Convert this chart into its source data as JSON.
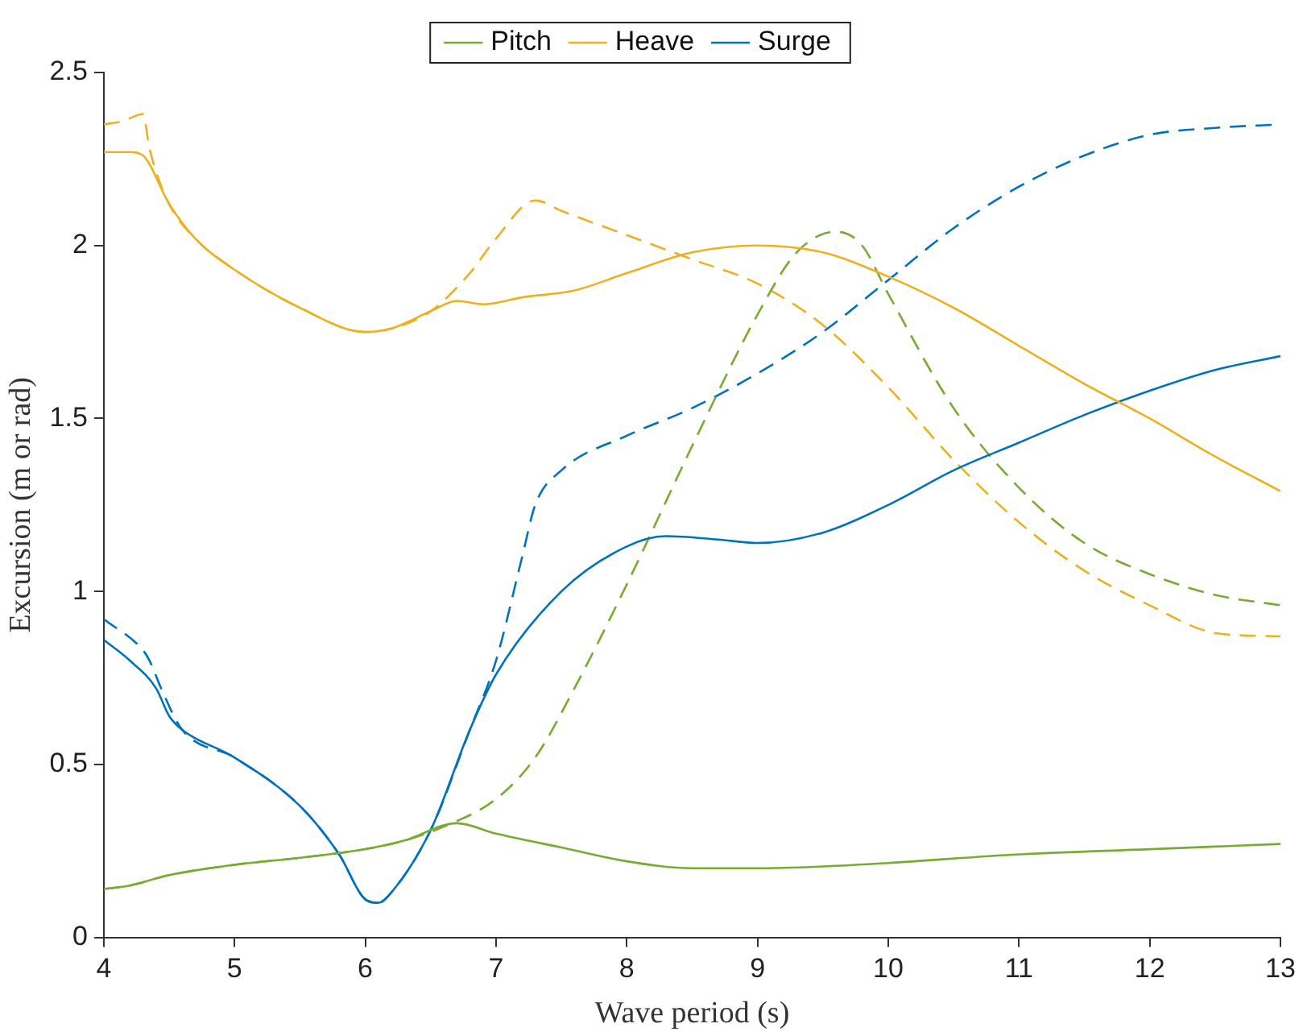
{
  "chart_data": {
    "type": "line",
    "xlabel": "Wave period (s)",
    "ylabel": "Excursion (m or rad)",
    "xlim": [
      4,
      13
    ],
    "xticks": [
      4,
      5,
      6,
      7,
      8,
      9,
      10,
      11,
      12,
      13
    ],
    "ylim": [
      0,
      2.5
    ],
    "yticks": [
      0,
      0.5,
      1,
      1.5,
      2,
      2.5
    ],
    "grid": false,
    "legend": "top",
    "marker": "none",
    "series": [
      {
        "name": "Pitch",
        "color": "#77ac30",
        "line_style": "solid",
        "x": [
          4,
          4.2,
          4.5,
          5,
          5.5,
          6,
          6.3,
          6.7,
          7,
          7.5,
          8,
          8.5,
          9,
          9.5,
          10,
          11,
          12,
          13
        ],
        "values": [
          0.14,
          0.15,
          0.18,
          0.21,
          0.23,
          0.255,
          0.28,
          0.33,
          0.3,
          0.26,
          0.22,
          0.2,
          0.2,
          0.205,
          0.215,
          0.24,
          0.255,
          0.27
        ]
      },
      {
        "name": "Heave",
        "color": "#edb120",
        "line_style": "solid",
        "x": [
          4,
          4.2,
          4.3,
          4.5,
          4.7,
          5,
          5.5,
          6,
          6.2,
          6.5,
          6.7,
          6.9,
          7.2,
          7.6,
          8,
          8.5,
          9,
          9.5,
          10,
          10.5,
          11,
          11.5,
          12,
          12.5,
          13
        ],
        "values": [
          2.27,
          2.27,
          2.26,
          2.12,
          2.02,
          1.93,
          1.82,
          1.75,
          1.76,
          1.81,
          1.84,
          1.83,
          1.85,
          1.87,
          1.92,
          1.98,
          2.0,
          1.98,
          1.91,
          1.82,
          1.71,
          1.6,
          1.5,
          1.39,
          1.29
        ]
      },
      {
        "name": "Surge",
        "color": "#0072bd",
        "line_style": "solid",
        "x": [
          4,
          4.2,
          4.4,
          4.5,
          4.6,
          5,
          5.5,
          5.8,
          6,
          6.1,
          6.2,
          6.5,
          6.8,
          7,
          7.5,
          8,
          8.3,
          8.7,
          9,
          9.5,
          10,
          10.5,
          11,
          11.5,
          12,
          12.5,
          13
        ],
        "values": [
          0.86,
          0.8,
          0.72,
          0.64,
          0.6,
          0.52,
          0.38,
          0.24,
          0.11,
          0.1,
          0.13,
          0.31,
          0.6,
          0.76,
          1.0,
          1.13,
          1.16,
          1.15,
          1.14,
          1.17,
          1.25,
          1.35,
          1.43,
          1.51,
          1.58,
          1.64,
          1.68
        ]
      },
      {
        "color": "#77ac30",
        "line_style": "dashed",
        "x": [
          4,
          4.2,
          4.5,
          5,
          5.5,
          6,
          6.3,
          6.6,
          7,
          7.3,
          7.6,
          8,
          8.5,
          9,
          9.3,
          9.6,
          9.8,
          10,
          10.5,
          11,
          11.5,
          12,
          12.5,
          13
        ],
        "values": [
          0.14,
          0.15,
          0.18,
          0.21,
          0.23,
          0.255,
          0.28,
          0.32,
          0.4,
          0.52,
          0.72,
          1.02,
          1.42,
          1.8,
          1.98,
          2.04,
          2.0,
          1.86,
          1.53,
          1.3,
          1.14,
          1.05,
          0.99,
          0.96
        ]
      },
      {
        "color": "#edb120",
        "line_style": "dashed",
        "x": [
          4,
          4.15,
          4.3,
          4.35,
          4.5,
          4.7,
          5,
          5.5,
          6,
          6.2,
          6.5,
          6.8,
          7,
          7.3,
          7.5,
          8,
          8.5,
          9,
          9.5,
          10,
          10.5,
          11,
          11.5,
          12,
          12.5,
          13
        ],
        "values": [
          2.35,
          2.36,
          2.38,
          2.28,
          2.12,
          2.02,
          1.93,
          1.82,
          1.75,
          1.76,
          1.81,
          1.92,
          2.02,
          2.13,
          2.1,
          2.03,
          1.96,
          1.89,
          1.77,
          1.59,
          1.38,
          1.2,
          1.06,
          0.96,
          0.88,
          0.87
        ]
      },
      {
        "color": "#0072bd",
        "line_style": "dashed",
        "x": [
          4,
          4.3,
          4.35,
          4.45,
          4.6,
          5,
          5.5,
          5.8,
          6,
          6.1,
          6.2,
          6.5,
          6.8,
          7,
          7.2,
          7.3,
          7.5,
          8,
          8.5,
          9,
          9.5,
          10,
          10.5,
          11,
          11.5,
          12,
          12.5,
          13
        ],
        "values": [
          0.92,
          0.83,
          0.8,
          0.71,
          0.6,
          0.52,
          0.38,
          0.24,
          0.11,
          0.1,
          0.13,
          0.31,
          0.6,
          0.8,
          1.1,
          1.25,
          1.35,
          1.45,
          1.53,
          1.63,
          1.75,
          1.9,
          2.05,
          2.17,
          2.26,
          2.32,
          2.34,
          2.35
        ]
      }
    ]
  }
}
